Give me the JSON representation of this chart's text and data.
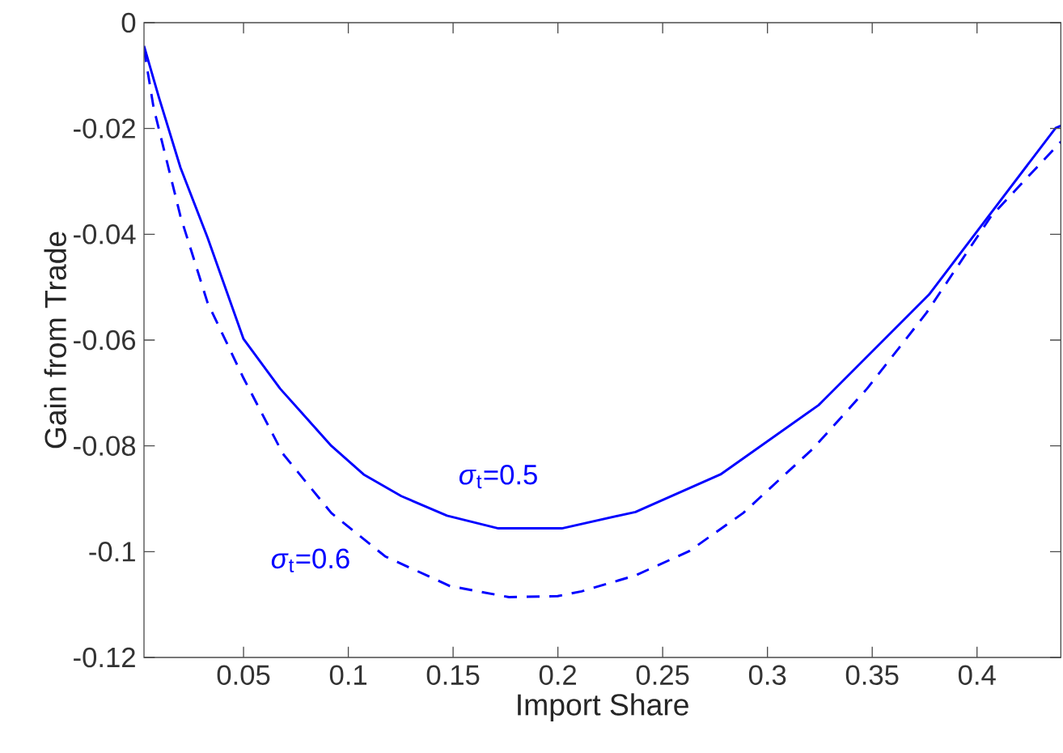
{
  "chart_data": {
    "type": "line",
    "xlabel": "Import Share",
    "ylabel": "Gain from Trade",
    "xlim": [
      0.0025,
      0.44
    ],
    "xticks": [
      0.05,
      0.1,
      0.15,
      0.2,
      0.25,
      0.3,
      0.35,
      0.4
    ],
    "ylim": [
      -0.12,
      0
    ],
    "yticks": [
      -0.12,
      -0.1,
      -0.08,
      -0.06,
      -0.04,
      -0.02,
      0
    ],
    "series": [
      {
        "name": "*σ*$_{t}$=0.5",
        "color": "#0000ff",
        "line_style": "solid",
        "x": [
          0.0025,
          0.0096,
          0.0199,
          0.0328,
          0.05,
          0.0675,
          0.0919,
          0.1073,
          0.1253,
          0.1471,
          0.1716,
          0.2019,
          0.237,
          0.2776,
          0.3244,
          0.3771,
          0.4375,
          0.44
        ],
        "values": [
          -0.0044,
          -0.0141,
          -0.0274,
          -0.0406,
          -0.0598,
          -0.0692,
          -0.08,
          -0.0854,
          -0.0895,
          -0.0932,
          -0.0956,
          -0.0956,
          -0.0925,
          -0.0854,
          -0.0723,
          -0.0514,
          -0.0199,
          -0.0195
        ]
      },
      {
        "name": "*σ*$_{t}$=0.6",
        "color": "#0000ff",
        "line_style": "dashed",
        "x": [
          0.0025,
          0.0071,
          0.0199,
          0.0328,
          0.05,
          0.0688,
          0.0919,
          0.1176,
          0.1485,
          0.1767,
          0.1999,
          0.2113,
          0.237,
          0.2627,
          0.2884,
          0.3218,
          0.3475,
          0.3758,
          0.4067,
          0.44
        ],
        "values": [
          -0.005,
          -0.0161,
          -0.0366,
          -0.0529,
          -0.0672,
          -0.0815,
          -0.0927,
          -0.1009,
          -0.1065,
          -0.1086,
          -0.1084,
          -0.1075,
          -0.1045,
          -0.0999,
          -0.0927,
          -0.0805,
          -0.0692,
          -0.0549,
          -0.0366,
          -0.0225
        ]
      }
    ]
  }
}
